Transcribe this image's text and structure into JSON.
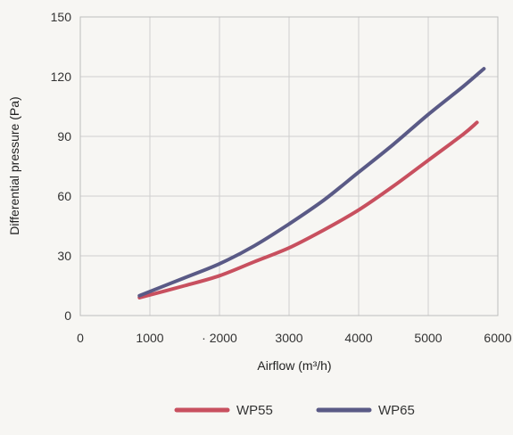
{
  "chart_data": {
    "type": "line",
    "xlabel": "Airflow (m³/h)",
    "ylabel": "Differential pressure (Pa)",
    "xlim": [
      0,
      6000
    ],
    "ylim": [
      0,
      150
    ],
    "x_ticks": [
      "0",
      "1000",
      "· 2000",
      "3000",
      "4000",
      "5000",
      "6000"
    ],
    "y_ticks": [
      "0",
      "30",
      "60",
      "90",
      "120",
      "150"
    ],
    "grid": true,
    "legend_position": "bottom-center",
    "series": [
      {
        "name": "WP55",
        "color": "#c8505f",
        "x": [
          850,
          1500,
          2000,
          2500,
          3000,
          3500,
          4000,
          4500,
          5000,
          5500,
          5700
        ],
        "y": [
          9,
          15,
          20,
          27,
          34,
          43,
          53,
          65,
          78,
          91,
          97
        ]
      },
      {
        "name": "WP65",
        "color": "#5a5a86",
        "x": [
          850,
          1500,
          2000,
          2500,
          3000,
          3500,
          4000,
          4500,
          5000,
          5500,
          5800
        ],
        "y": [
          10,
          19,
          26,
          35,
          46,
          58,
          72,
          86,
          101,
          115,
          124
        ]
      }
    ]
  }
}
